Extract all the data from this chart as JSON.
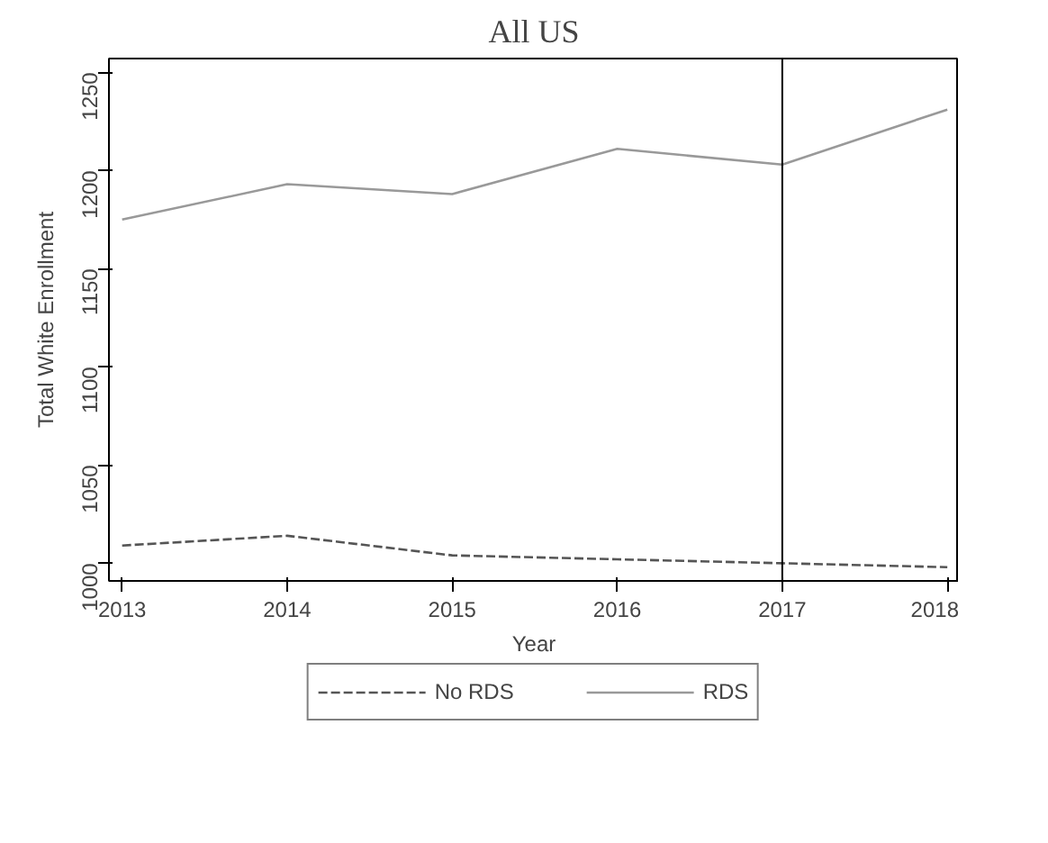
{
  "chart_data": {
    "type": "line",
    "title": "All US",
    "xlabel": "Year",
    "ylabel": "Total White Enrollment",
    "x": [
      2013,
      2014,
      2015,
      2016,
      2017,
      2018
    ],
    "series": [
      {
        "name": "No RDS",
        "color": "#555555",
        "values": [
          1009,
          1014,
          1004,
          1002,
          1000,
          998
        ],
        "line_style": "dashed"
      },
      {
        "name": "RDS",
        "color": "#999999",
        "values": [
          1175,
          1193,
          1188,
          1211,
          1203,
          1231
        ],
        "line_style": "solid"
      }
    ],
    "xlim": [
      2012.92,
      2018.07
    ],
    "ylim": [
      991,
      1257
    ],
    "xticks": [
      2013,
      2014,
      2015,
      2016,
      2017,
      2018
    ],
    "yticks": [
      1000,
      1050,
      1100,
      1150,
      1200,
      1250
    ],
    "ref_lines": [
      {
        "axis": "x",
        "value": 2017,
        "color": "#000000"
      }
    ],
    "grid": false,
    "legend": "bottom",
    "marker": "none"
  }
}
